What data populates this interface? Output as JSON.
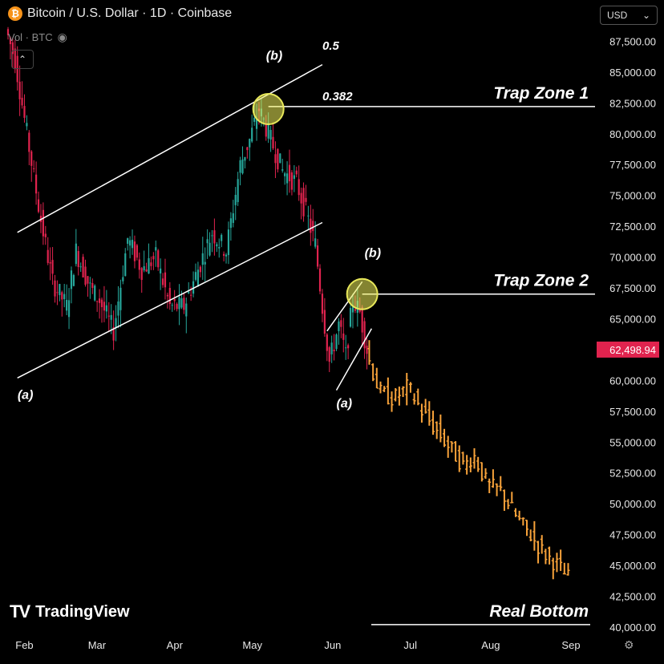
{
  "header": {
    "coin_icon": "bitcoin-icon",
    "title": "Bitcoin / U.S. Dollar · 1D · Coinbase",
    "volume_label": "Vol · BTC",
    "collapse_icon": "chevron-up-icon",
    "currency": "USD",
    "currency_icon": "chevron-down-icon"
  },
  "branding": {
    "name": "TradingView"
  },
  "chart_data": {
    "type": "candlestick",
    "x_ticks": [
      "Feb",
      "Mar",
      "Apr",
      "May",
      "Jun",
      "Jul",
      "Aug",
      "Sep"
    ],
    "y_ticks": [
      "87,500.00",
      "85,000.00",
      "82,500.00",
      "80,000.00",
      "77,500.00",
      "75,000.00",
      "72,500.00",
      "70,000.00",
      "67,500.00",
      "65,000.00",
      "62,498.94",
      "60,000.00",
      "57,500.00",
      "55,000.00",
      "52,500.00",
      "50,000.00",
      "47,500.00",
      "45,000.00",
      "42,500.00",
      "40,000.00"
    ],
    "ylim": [
      39000,
      89500
    ],
    "last_price": 62498.94,
    "last_price_label": "62,498.94",
    "colors": {
      "up": "#26a69a",
      "down": "#e0234e",
      "projection": "#f7a23a",
      "price_tag": "#e0234e"
    },
    "actual_path": [
      [
        0,
        88500
      ],
      [
        4,
        86000
      ],
      [
        9,
        80000
      ],
      [
        15,
        73000
      ],
      [
        20,
        68000
      ],
      [
        26,
        66000
      ],
      [
        30,
        70500
      ],
      [
        36,
        67500
      ],
      [
        40,
        66500
      ],
      [
        46,
        64000
      ],
      [
        52,
        71500
      ],
      [
        58,
        69000
      ],
      [
        64,
        70000
      ],
      [
        70,
        66000
      ],
      [
        76,
        66000
      ],
      [
        82,
        69000
      ],
      [
        88,
        72000
      ],
      [
        94,
        70500
      ],
      [
        100,
        77500
      ],
      [
        104,
        79500
      ],
      [
        108,
        82000
      ],
      [
        112,
        80000
      ],
      [
        118,
        77000
      ],
      [
        124,
        76000
      ],
      [
        129,
        73000
      ],
      [
        132,
        71000
      ],
      [
        135,
        66000
      ],
      [
        138,
        61500
      ],
      [
        142,
        64500
      ],
      [
        145,
        62000
      ],
      [
        148,
        66500
      ],
      [
        151,
        65500
      ],
      [
        154,
        62500
      ]
    ],
    "projection_path": [
      [
        154,
        62500
      ],
      [
        160,
        59000
      ],
      [
        166,
        58500
      ],
      [
        172,
        59500
      ],
      [
        178,
        57500
      ],
      [
        184,
        56000
      ],
      [
        190,
        54500
      ],
      [
        196,
        53000
      ],
      [
        200,
        54000
      ],
      [
        206,
        51500
      ],
      [
        212,
        51000
      ],
      [
        218,
        49000
      ],
      [
        224,
        47500
      ],
      [
        230,
        46000
      ],
      [
        236,
        45000
      ],
      [
        240,
        44000
      ]
    ],
    "annotations": {
      "wave_labels": [
        {
          "text": "(a)",
          "x": 2,
          "y": 58500
        },
        {
          "text": "(b)",
          "x": 110,
          "y": 86000
        },
        {
          "text": "(a)",
          "x": 140,
          "y": 57800
        },
        {
          "text": "(b)",
          "x": 152,
          "y": 70000
        }
      ],
      "fib_labels": [
        {
          "text": "0.5",
          "x": 128,
          "y": 86800
        },
        {
          "text": "0.382",
          "x": 128,
          "y": 82700
        }
      ],
      "zones": [
        {
          "text": "Trap Zone 1",
          "price": 82200
        },
        {
          "text": "Trap Zone 2",
          "price": 67000
        },
        {
          "text": "Real Bottom",
          "price": 40200
        }
      ],
      "channel_upper": [
        [
          4,
          72000
        ],
        [
          134,
          85600
        ]
      ],
      "channel_lower": [
        [
          4,
          60200
        ],
        [
          134,
          72800
        ]
      ],
      "wedge_upper": [
        [
          136,
          64000
        ],
        [
          151,
          68000
        ]
      ],
      "wedge_lower": [
        [
          140,
          59200
        ],
        [
          155,
          64200
        ]
      ],
      "circles": [
        {
          "x": 111,
          "y": 82000
        },
        {
          "x": 151,
          "y": 67000
        }
      ]
    }
  }
}
